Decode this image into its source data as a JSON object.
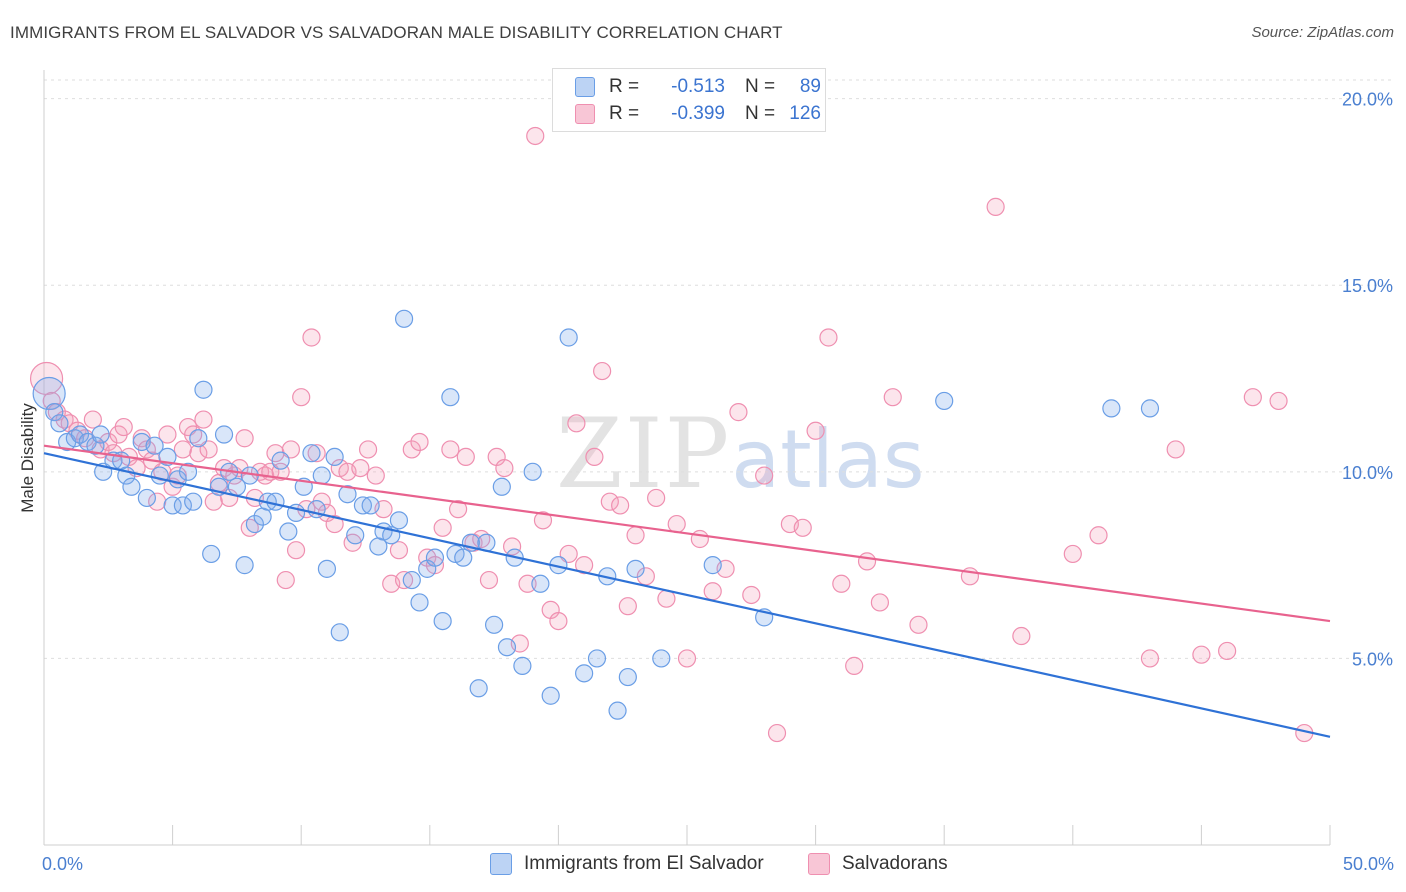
{
  "title": "IMMIGRANTS FROM EL SALVADOR VS SALVADORAN MALE DISABILITY CORRELATION CHART",
  "source": "Source: ZipAtlas.com",
  "watermark": {
    "zip": "ZIP",
    "atlas": "atlas"
  },
  "legend": {
    "series": [
      {
        "r_label": "R =",
        "r_value": "-0.513",
        "n_label": "N =",
        "n_value": "89"
      },
      {
        "r_label": "R =",
        "r_value": "-0.399",
        "n_label": "N =",
        "n_value": "126"
      }
    ]
  },
  "bottom_legend": [
    "Immigrants from El Salvador",
    "Salvadorans"
  ],
  "chart_data": {
    "type": "scatter",
    "title": "IMMIGRANTS FROM EL SALVADOR VS SALVADORAN MALE DISABILITY CORRELATION CHART",
    "xlabel": "",
    "ylabel": "Male Disability",
    "xlim": [
      0,
      50
    ],
    "ylim": [
      0,
      20.5
    ],
    "x_tick_labels": [
      "0.0%",
      "50.0%"
    ],
    "y_ticks": [
      5,
      10,
      15,
      20
    ],
    "y_tick_labels": [
      "5.0%",
      "10.0%",
      "15.0%",
      "20.0%"
    ],
    "grid": "horizontal dashed",
    "colors": {
      "blue": "#6a9ee6",
      "pink": "#ef8fb0",
      "blue_line": "#2f72d6",
      "pink_line": "#e8628e"
    },
    "series": [
      {
        "name": "Immigrants from El Salvador",
        "color": "#6a9ee6",
        "trend": [
          [
            0,
            10.5
          ],
          [
            50,
            2.9
          ]
        ],
        "points": [
          [
            0.2,
            12.1
          ],
          [
            0.4,
            11.6
          ],
          [
            0.6,
            11.3
          ],
          [
            0.9,
            10.8
          ],
          [
            1.2,
            10.9
          ],
          [
            1.4,
            11.0
          ],
          [
            1.7,
            10.8
          ],
          [
            2.0,
            10.7
          ],
          [
            2.2,
            11.0
          ],
          [
            2.3,
            10.0
          ],
          [
            2.7,
            10.3
          ],
          [
            3.0,
            10.3
          ],
          [
            3.2,
            9.9
          ],
          [
            3.4,
            9.6
          ],
          [
            3.8,
            10.8
          ],
          [
            4.0,
            9.3
          ],
          [
            4.3,
            10.7
          ],
          [
            4.5,
            9.9
          ],
          [
            4.8,
            10.4
          ],
          [
            5.0,
            9.1
          ],
          [
            5.2,
            9.8
          ],
          [
            5.4,
            9.1
          ],
          [
            5.6,
            10.0
          ],
          [
            5.8,
            9.2
          ],
          [
            6.0,
            10.9
          ],
          [
            6.2,
            12.2
          ],
          [
            6.5,
            7.8
          ],
          [
            6.8,
            9.6
          ],
          [
            7.0,
            11.0
          ],
          [
            7.2,
            10.0
          ],
          [
            7.5,
            9.6
          ],
          [
            7.8,
            7.5
          ],
          [
            8.0,
            9.9
          ],
          [
            8.2,
            8.6
          ],
          [
            8.5,
            8.8
          ],
          [
            8.7,
            9.2
          ],
          [
            9.0,
            9.2
          ],
          [
            9.2,
            10.3
          ],
          [
            9.5,
            8.4
          ],
          [
            9.8,
            8.9
          ],
          [
            10.1,
            9.6
          ],
          [
            10.4,
            10.5
          ],
          [
            10.6,
            9.0
          ],
          [
            10.8,
            9.9
          ],
          [
            11.0,
            7.4
          ],
          [
            11.3,
            10.4
          ],
          [
            11.5,
            5.7
          ],
          [
            11.8,
            9.4
          ],
          [
            12.1,
            8.3
          ],
          [
            12.4,
            9.1
          ],
          [
            12.7,
            9.1
          ],
          [
            13.0,
            8.0
          ],
          [
            13.2,
            8.4
          ],
          [
            13.5,
            8.3
          ],
          [
            13.8,
            8.7
          ],
          [
            14.0,
            14.1
          ],
          [
            14.3,
            7.1
          ],
          [
            14.6,
            6.5
          ],
          [
            14.9,
            7.4
          ],
          [
            15.2,
            7.7
          ],
          [
            15.5,
            6.0
          ],
          [
            15.8,
            12.0
          ],
          [
            16.0,
            7.8
          ],
          [
            16.3,
            7.7
          ],
          [
            16.6,
            8.1
          ],
          [
            16.9,
            4.2
          ],
          [
            17.2,
            8.1
          ],
          [
            17.5,
            5.9
          ],
          [
            17.8,
            9.6
          ],
          [
            18.0,
            5.3
          ],
          [
            18.3,
            7.7
          ],
          [
            18.6,
            4.8
          ],
          [
            19.0,
            10.0
          ],
          [
            19.3,
            7.0
          ],
          [
            19.7,
            4.0
          ],
          [
            20.0,
            7.5
          ],
          [
            20.4,
            13.6
          ],
          [
            21.0,
            4.6
          ],
          [
            21.5,
            5.0
          ],
          [
            21.9,
            7.2
          ],
          [
            22.3,
            3.6
          ],
          [
            22.7,
            4.5
          ],
          [
            23.0,
            7.4
          ],
          [
            24.0,
            5.0
          ],
          [
            26.0,
            7.5
          ],
          [
            28.0,
            6.1
          ],
          [
            35.0,
            11.9
          ],
          [
            41.5,
            11.7
          ],
          [
            43.0,
            11.7
          ]
        ]
      },
      {
        "name": "Salvadorans",
        "color": "#ef8fb0",
        "trend": [
          [
            0,
            10.7
          ],
          [
            50,
            6.0
          ]
        ],
        "points": [
          [
            0.1,
            12.5
          ],
          [
            0.3,
            11.9
          ],
          [
            0.5,
            11.6
          ],
          [
            0.8,
            11.4
          ],
          [
            1.0,
            11.3
          ],
          [
            1.3,
            11.1
          ],
          [
            1.6,
            10.9
          ],
          [
            1.9,
            11.4
          ],
          [
            2.2,
            10.6
          ],
          [
            2.5,
            10.8
          ],
          [
            2.7,
            10.5
          ],
          [
            2.9,
            11.0
          ],
          [
            3.1,
            11.2
          ],
          [
            3.3,
            10.4
          ],
          [
            3.6,
            10.1
          ],
          [
            3.8,
            10.9
          ],
          [
            4.0,
            10.6
          ],
          [
            4.2,
            10.3
          ],
          [
            4.4,
            9.2
          ],
          [
            4.6,
            10.0
          ],
          [
            4.8,
            11.0
          ],
          [
            5.0,
            9.6
          ],
          [
            5.2,
            9.9
          ],
          [
            5.4,
            10.6
          ],
          [
            5.6,
            11.2
          ],
          [
            5.8,
            11.0
          ],
          [
            6.0,
            10.5
          ],
          [
            6.2,
            11.4
          ],
          [
            6.4,
            10.6
          ],
          [
            6.6,
            9.2
          ],
          [
            6.8,
            9.7
          ],
          [
            7.0,
            10.1
          ],
          [
            7.2,
            9.3
          ],
          [
            7.4,
            9.9
          ],
          [
            7.6,
            10.1
          ],
          [
            7.8,
            10.9
          ],
          [
            8.0,
            8.5
          ],
          [
            8.2,
            9.3
          ],
          [
            8.4,
            10.0
          ],
          [
            8.6,
            9.9
          ],
          [
            8.8,
            10.0
          ],
          [
            9.0,
            10.5
          ],
          [
            9.2,
            10.0
          ],
          [
            9.4,
            7.1
          ],
          [
            9.6,
            10.6
          ],
          [
            9.8,
            7.9
          ],
          [
            10.0,
            12.0
          ],
          [
            10.2,
            9.0
          ],
          [
            10.4,
            13.6
          ],
          [
            10.6,
            10.5
          ],
          [
            10.8,
            9.2
          ],
          [
            11.0,
            8.9
          ],
          [
            11.3,
            8.6
          ],
          [
            11.5,
            10.1
          ],
          [
            11.8,
            10.0
          ],
          [
            12.0,
            8.1
          ],
          [
            12.3,
            10.1
          ],
          [
            12.6,
            10.6
          ],
          [
            12.9,
            9.9
          ],
          [
            13.2,
            9.0
          ],
          [
            13.5,
            7.0
          ],
          [
            13.8,
            7.9
          ],
          [
            14.0,
            7.1
          ],
          [
            14.3,
            10.6
          ],
          [
            14.6,
            10.8
          ],
          [
            14.9,
            7.7
          ],
          [
            15.2,
            7.5
          ],
          [
            15.5,
            8.5
          ],
          [
            15.8,
            10.6
          ],
          [
            16.1,
            9.0
          ],
          [
            16.4,
            10.4
          ],
          [
            16.7,
            8.1
          ],
          [
            17.0,
            8.2
          ],
          [
            17.3,
            7.1
          ],
          [
            17.6,
            10.4
          ],
          [
            17.9,
            10.1
          ],
          [
            18.2,
            8.0
          ],
          [
            18.5,
            5.4
          ],
          [
            18.8,
            7.0
          ],
          [
            19.1,
            19.0
          ],
          [
            19.4,
            8.7
          ],
          [
            19.7,
            6.3
          ],
          [
            20.0,
            6.0
          ],
          [
            20.4,
            7.8
          ],
          [
            20.7,
            11.3
          ],
          [
            21.0,
            7.5
          ],
          [
            21.4,
            10.4
          ],
          [
            21.7,
            12.7
          ],
          [
            22.0,
            9.2
          ],
          [
            22.4,
            9.1
          ],
          [
            22.7,
            6.4
          ],
          [
            23.0,
            8.3
          ],
          [
            23.4,
            7.2
          ],
          [
            23.8,
            9.3
          ],
          [
            24.2,
            6.6
          ],
          [
            24.6,
            8.6
          ],
          [
            25.0,
            5.0
          ],
          [
            25.5,
            8.2
          ],
          [
            26.0,
            6.8
          ],
          [
            26.5,
            7.4
          ],
          [
            27.0,
            11.6
          ],
          [
            27.5,
            6.7
          ],
          [
            28.0,
            9.9
          ],
          [
            28.5,
            3.0
          ],
          [
            29.0,
            8.6
          ],
          [
            29.5,
            8.5
          ],
          [
            30.0,
            11.1
          ],
          [
            30.5,
            13.6
          ],
          [
            31.0,
            7.0
          ],
          [
            31.5,
            4.8
          ],
          [
            32.0,
            7.6
          ],
          [
            32.5,
            6.5
          ],
          [
            33.0,
            12.0
          ],
          [
            34.0,
            5.9
          ],
          [
            36.0,
            7.2
          ],
          [
            37.0,
            17.1
          ],
          [
            38.0,
            5.6
          ],
          [
            40.0,
            7.8
          ],
          [
            41.0,
            8.3
          ],
          [
            43.0,
            5.0
          ],
          [
            44.0,
            10.6
          ],
          [
            45.0,
            5.1
          ],
          [
            46.0,
            5.2
          ],
          [
            47.0,
            12.0
          ],
          [
            48.0,
            11.9
          ],
          [
            49.0,
            3.0
          ]
        ]
      }
    ]
  }
}
